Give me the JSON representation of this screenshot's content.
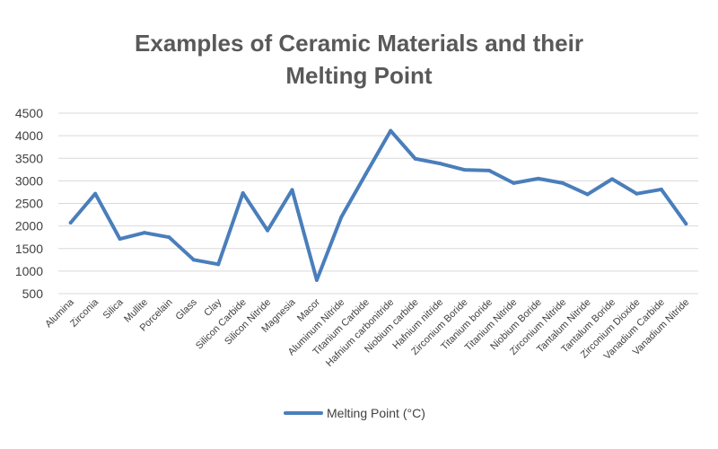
{
  "chart_data": {
    "type": "line",
    "title_lines": [
      "Examples of Ceramic Materials and their",
      "Melting Point"
    ],
    "categories": [
      "Alumina",
      "Zirconia",
      "Silica",
      "Mullite",
      "Porcelain",
      "Glass",
      "Clay",
      "Silicon Carbide",
      "Silicon Nitride",
      "Magnesia",
      "Macor",
      "Aluminum Nitride",
      "Titanium Carbide",
      "Hafnium carbonitride",
      "Niobium carbide",
      "Hafnium nitride",
      "Zirconium Boride",
      "Titanium boride",
      "Titanium Nitride",
      "Niobium Boride",
      "Zirconium Nitride",
      "Tantalum Nitride",
      "Tantalum Boride",
      "Zirconium Dioxide",
      "Vanadium Carbide",
      "Vanadium Nitride"
    ],
    "series": [
      {
        "name": "Melting Point (°C)",
        "color": "#4a7ebb",
        "values": [
          2072,
          2715,
          1713,
          1850,
          1750,
          1250,
          1150,
          2730,
          1900,
          2800,
          800,
          2200,
          3160,
          4110,
          3490,
          3385,
          3245,
          3230,
          2950,
          3050,
          2950,
          2700,
          3040,
          2715,
          2810,
          2050
        ]
      }
    ],
    "ylim": [
      500,
      4500
    ],
    "yticks": [
      500,
      1000,
      1500,
      2000,
      2500,
      3000,
      3500,
      4000,
      4500
    ],
    "grid": true,
    "legend": "bottom"
  }
}
